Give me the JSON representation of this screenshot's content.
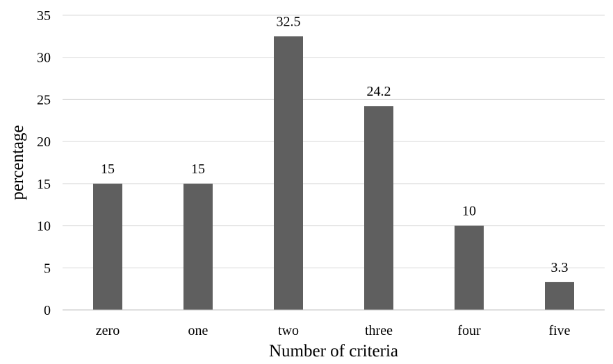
{
  "chart_data": {
    "type": "bar",
    "categories": [
      "zero",
      "one",
      "two",
      "three",
      "four",
      "five"
    ],
    "values": [
      15,
      15,
      32.5,
      24.2,
      10,
      3.3
    ],
    "data_labels": [
      "15",
      "15",
      "32.5",
      "24.2",
      "10",
      "3.3"
    ],
    "title": "",
    "xlabel": "Number of criteria",
    "ylabel": "percentage",
    "ylim": [
      0,
      35
    ],
    "yticks": [
      0,
      5,
      10,
      15,
      20,
      25,
      30,
      35
    ],
    "ytick_labels": [
      "0",
      "5",
      "10",
      "15",
      "20",
      "25",
      "30",
      "35"
    ],
    "grid": true,
    "legend": "none",
    "bar_color": "#5f5f5f"
  }
}
